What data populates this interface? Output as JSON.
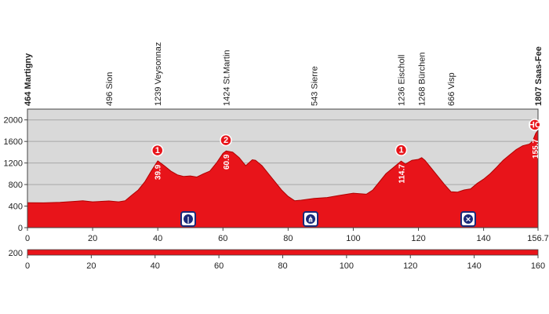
{
  "chart_data": [
    {
      "type": "area",
      "x": [
        0,
        5,
        10,
        15,
        17,
        20,
        25,
        28,
        30,
        32,
        34,
        36,
        38,
        40,
        42,
        44,
        46,
        48,
        50,
        52,
        54,
        56,
        58,
        60,
        61,
        63,
        65,
        67,
        69,
        70,
        72,
        74,
        76,
        78,
        80,
        82,
        84,
        88,
        92,
        96,
        100,
        104,
        106,
        108,
        110,
        112,
        114.7,
        116,
        118,
        120,
        121,
        122,
        124,
        126,
        128,
        130,
        132,
        134,
        136,
        138,
        140,
        142,
        144,
        146,
        148,
        150,
        152,
        154,
        155,
        156,
        156.7
      ],
      "y": [
        464,
        460,
        470,
        490,
        500,
        480,
        496,
        480,
        500,
        600,
        700,
        850,
        1050,
        1239,
        1150,
        1050,
        980,
        950,
        960,
        940,
        1000,
        1050,
        1200,
        1380,
        1424,
        1400,
        1300,
        1150,
        1260,
        1250,
        1150,
        1000,
        850,
        700,
        580,
        500,
        510,
        543,
        560,
        600,
        640,
        620,
        700,
        850,
        1000,
        1100,
        1236,
        1180,
        1250,
        1268,
        1300,
        1250,
        1100,
        950,
        800,
        666,
        660,
        700,
        720,
        820,
        900,
        1000,
        1120,
        1250,
        1350,
        1450,
        1520,
        1550,
        1600,
        1750,
        1807
      ],
      "color": "#e8141a",
      "xlim": [
        0,
        156.7
      ],
      "xticks": [
        0,
        20,
        40,
        60,
        80,
        100,
        120,
        140,
        156.7
      ],
      "ylim": [
        0,
        2200
      ],
      "yticks": [
        0,
        400,
        800,
        1200,
        1600,
        2000
      ],
      "grid": true,
      "place_labels": [
        {
          "text": "464 Martigny",
          "x": 0,
          "bold": true
        },
        {
          "text": "496 Sion",
          "x": 25
        },
        {
          "text": "1239 Veysonnaz",
          "x": 40
        },
        {
          "text": "1424 St.Martin",
          "x": 61
        },
        {
          "text": "543 Sierre",
          "x": 88
        },
        {
          "text": "1236 Eischoll",
          "x": 114.7
        },
        {
          "text": "1268 Bürchen",
          "x": 121
        },
        {
          "text": "666 Visp",
          "x": 130
        },
        {
          "text": "1807 Saas-Fee",
          "x": 156.7,
          "bold": true
        }
      ],
      "climbs": [
        {
          "category": "1",
          "km": 39.9
        },
        {
          "category": "2",
          "km": 60.9
        },
        {
          "category": "1",
          "km": 114.7
        },
        {
          "category": "HC",
          "km": 155.7
        }
      ]
    },
    {
      "type": "strip",
      "xlim": [
        0,
        160
      ],
      "xticks": [
        0,
        20,
        40,
        60,
        80,
        100,
        120,
        140,
        160
      ],
      "yticks": [
        200
      ],
      "color": "#e8141a"
    }
  ]
}
